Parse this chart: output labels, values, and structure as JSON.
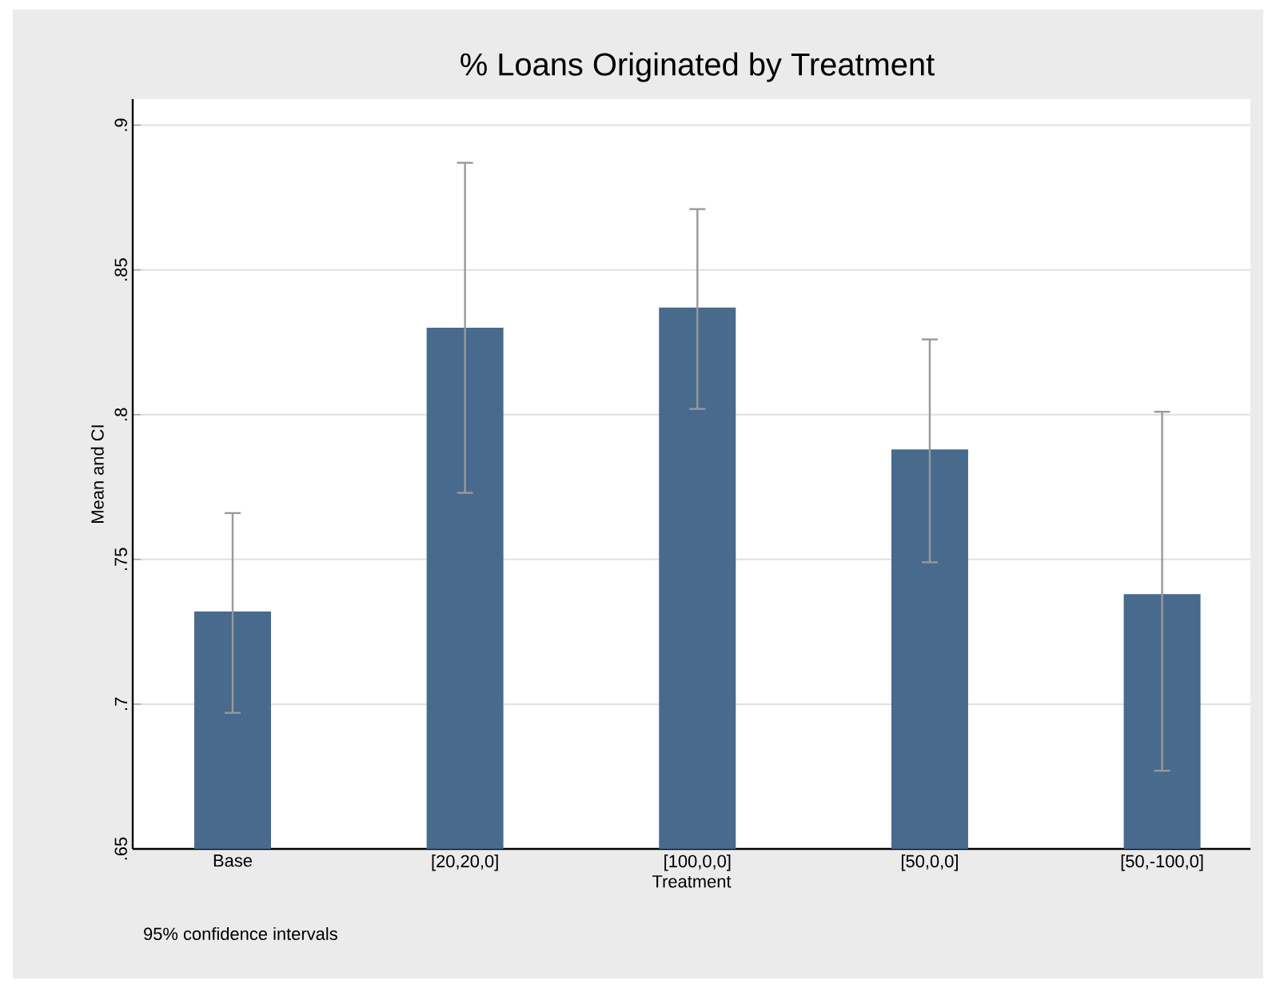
{
  "chart_data": {
    "type": "bar",
    "title": "% Loans Originated by Treatment",
    "xlabel": "Treatment",
    "ylabel": "Mean and CI",
    "categories": [
      "Base",
      "[20,20,0]",
      "[100,0,0]",
      "[50,0,0]",
      "[50,-100,0]"
    ],
    "values": [
      0.732,
      0.83,
      0.837,
      0.788,
      0.738
    ],
    "errors": [
      [
        0.697,
        0.766
      ],
      [
        0.773,
        0.887
      ],
      [
        0.802,
        0.871
      ],
      [
        0.749,
        0.826
      ],
      [
        0.677,
        0.801
      ]
    ],
    "color": "#486a8c",
    "ylim": [
      0.65,
      0.909
    ],
    "yticks": [
      {
        "value": 0.65,
        "label": ".65"
      },
      {
        "value": 0.7,
        "label": ".7"
      },
      {
        "value": 0.75,
        "label": ".75"
      },
      {
        "value": 0.8,
        "label": ".8"
      },
      {
        "value": 0.85,
        "label": ".85"
      },
      {
        "value": 0.9,
        "label": ".9"
      }
    ],
    "grid": "y",
    "annotations": [
      "95% confidence intervals"
    ]
  }
}
